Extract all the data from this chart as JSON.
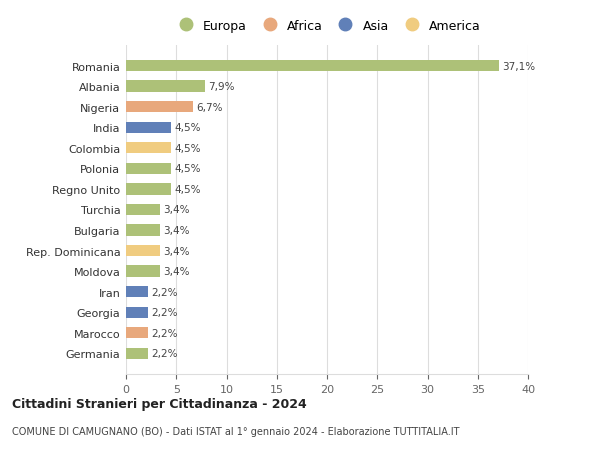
{
  "countries": [
    "Romania",
    "Albania",
    "Nigeria",
    "India",
    "Colombia",
    "Polonia",
    "Regno Unito",
    "Turchia",
    "Bulgaria",
    "Rep. Dominicana",
    "Moldova",
    "Iran",
    "Georgia",
    "Marocco",
    "Germania"
  ],
  "values": [
    37.1,
    7.9,
    6.7,
    4.5,
    4.5,
    4.5,
    4.5,
    3.4,
    3.4,
    3.4,
    3.4,
    2.2,
    2.2,
    2.2,
    2.2
  ],
  "labels": [
    "37,1%",
    "7,9%",
    "6,7%",
    "4,5%",
    "4,5%",
    "4,5%",
    "4,5%",
    "3,4%",
    "3,4%",
    "3,4%",
    "3,4%",
    "2,2%",
    "2,2%",
    "2,2%",
    "2,2%"
  ],
  "continents": [
    "Europa",
    "Europa",
    "Africa",
    "Asia",
    "America",
    "Europa",
    "Europa",
    "Europa",
    "Europa",
    "America",
    "Europa",
    "Asia",
    "Asia",
    "Africa",
    "Europa"
  ],
  "colors": {
    "Europa": "#adc178",
    "Africa": "#e8a87c",
    "Asia": "#6080b8",
    "America": "#f0cc80"
  },
  "legend_order": [
    "Europa",
    "Africa",
    "Asia",
    "America"
  ],
  "title": "Cittadini Stranieri per Cittadinanza - 2024",
  "subtitle": "COMUNE DI CAMUGNANO (BO) - Dati ISTAT al 1° gennaio 2024 - Elaborazione TUTTITALIA.IT",
  "xlim": [
    0,
    40
  ],
  "xticks": [
    0,
    5,
    10,
    15,
    20,
    25,
    30,
    35,
    40
  ],
  "background_color": "#ffffff",
  "grid_color": "#dddddd"
}
